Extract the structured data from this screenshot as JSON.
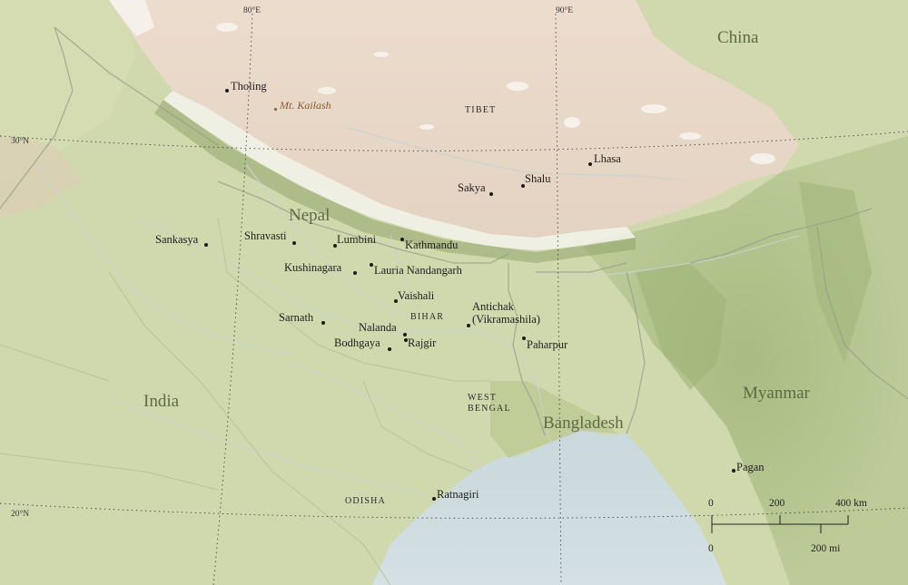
{
  "map": {
    "countries": [
      {
        "name": "China"
      },
      {
        "name": "Nepal"
      },
      {
        "name": "India"
      },
      {
        "name": "Bangladesh"
      },
      {
        "name": "Myanmar"
      }
    ],
    "regions": [
      {
        "name": "TIBET"
      },
      {
        "name": "BIHAR"
      },
      {
        "name": "WEST\nBENGAL"
      },
      {
        "name": "ODISHA"
      }
    ],
    "peaks": [
      {
        "name": "Mt. Kailash"
      }
    ],
    "cities": [
      {
        "name": "Tholing"
      },
      {
        "name": "Lhasa"
      },
      {
        "name": "Shalu"
      },
      {
        "name": "Sakya"
      },
      {
        "name": "Kathmandu"
      },
      {
        "name": "Lumbini"
      },
      {
        "name": "Shravasti"
      },
      {
        "name": "Sankasya"
      },
      {
        "name": "Kushinagara"
      },
      {
        "name": "Lauria Nandangarh"
      },
      {
        "name": "Vaishali"
      },
      {
        "name": "Sarnath"
      },
      {
        "name": "Nalanda"
      },
      {
        "name": "Rajgir"
      },
      {
        "name": "Bodhgaya"
      },
      {
        "name": "Antichak\n(Vikramashila)"
      },
      {
        "name": "Paharpur"
      },
      {
        "name": "Pagan"
      },
      {
        "name": "Ratnagiri"
      }
    ],
    "graticule": [
      {
        "label": "80°E"
      },
      {
        "label": "90°E"
      },
      {
        "label": "30°N"
      },
      {
        "label": "20°N"
      }
    ],
    "scale_bar": {
      "km_ticks": [
        "0",
        "200",
        "400 km"
      ],
      "mi_ticks": [
        "0",
        "200 mi"
      ]
    }
  }
}
